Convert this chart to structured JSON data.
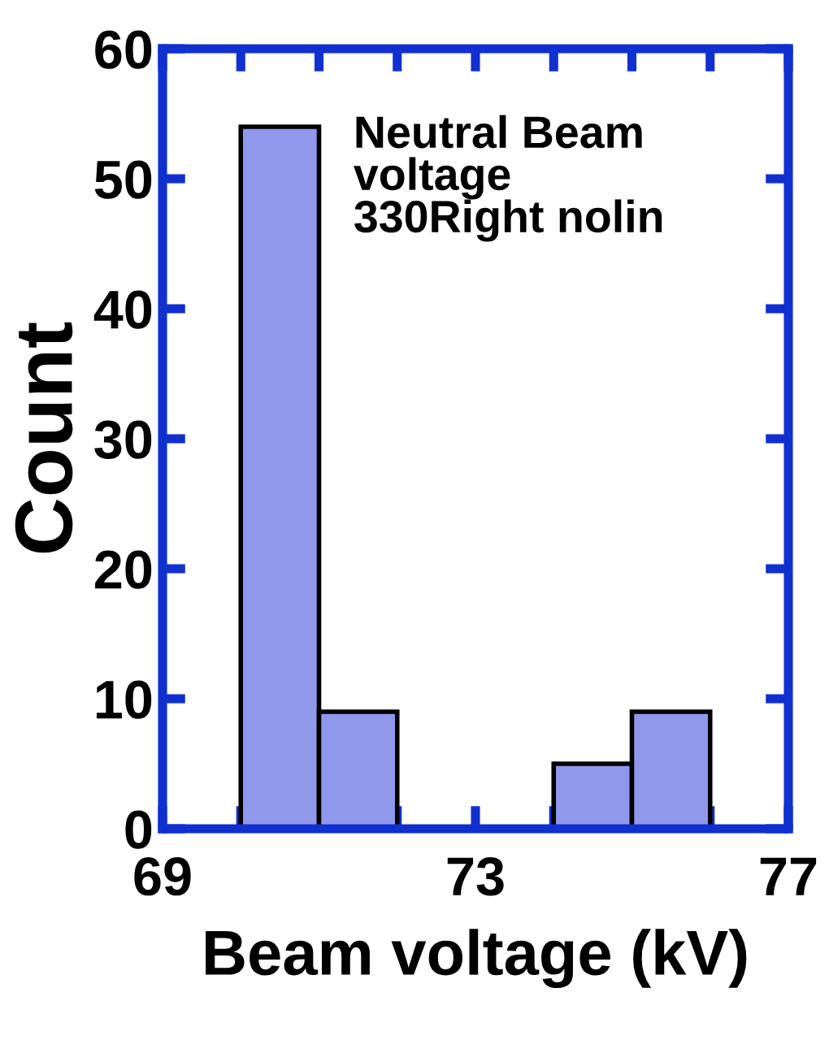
{
  "chart_data": {
    "type": "histogram",
    "xlabel": "Beam voltage (kV)",
    "ylabel": "Count",
    "annotations": [
      "Neutral Beam\nvoltage\n330Right nolin"
    ],
    "bins": [
      70,
      71,
      72,
      73,
      74,
      75,
      76
    ],
    "values": [
      54,
      9,
      0,
      0,
      5,
      9
    ],
    "color": "#9098ec",
    "xlim": [
      69,
      77
    ],
    "ylim": [
      0,
      60
    ],
    "xticks": [
      69,
      {
        "value": 70,
        "label": null
      },
      {
        "value": 71,
        "label": null
      },
      {
        "value": 72,
        "label": null
      },
      73,
      {
        "value": 74,
        "label": null
      },
      {
        "value": 75,
        "label": null
      },
      {
        "value": 76,
        "label": null
      },
      77
    ],
    "yticks": [
      0,
      10,
      20,
      30,
      40,
      50,
      60
    ],
    "grid": false,
    "legend": false
  }
}
